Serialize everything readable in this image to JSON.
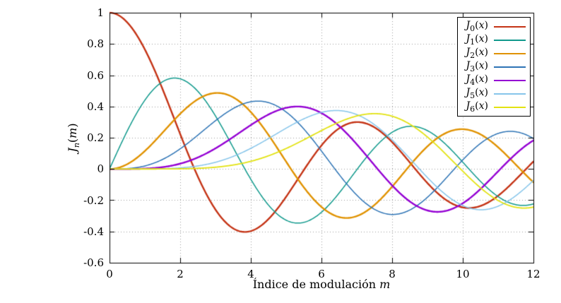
{
  "labels": {
    "y": {
      "base": "J",
      "sub": "n",
      "open": "(",
      "var": "m",
      "close": ")"
    },
    "x": {
      "text": "Índice de modulación ",
      "var": "m"
    }
  },
  "colors": {
    "background": "#ffffff",
    "border": "#000000",
    "text": "#000000",
    "grid": "#999999"
  },
  "chart_data": {
    "type": "line",
    "title": "",
    "xlabel": "Índice de modulación m",
    "ylabel": "J_n(m)",
    "xlim": [
      0,
      12
    ],
    "ylim": [
      -0.6,
      1
    ],
    "grid": "dotted",
    "legend_position": "top-right",
    "x_ticks": {
      "values": [
        0,
        2,
        4,
        6,
        8,
        10,
        12
      ],
      "labels": [
        "0",
        "2",
        "4",
        "6",
        "8",
        "10",
        "12"
      ]
    },
    "y_ticks": {
      "values": [
        1,
        0.8,
        0.6,
        0.4,
        0.2,
        0,
        -0.2,
        -0.4,
        -0.6
      ],
      "labels": [
        "1",
        "0.8",
        "0.6",
        "0.4",
        "0.2",
        "0",
        "-0.2",
        "-0.4",
        "-0.6"
      ]
    },
    "x": [
      0,
      1,
      2,
      3,
      4,
      5,
      6,
      7,
      8,
      9,
      10,
      11,
      12
    ],
    "series": [
      {
        "label": "J0(x)",
        "order": 0,
        "color": "#c43315",
        "lw": 2.4,
        "values": [
          1,
          0.7652,
          0.2239,
          -0.2601,
          -0.3971,
          -0.1776,
          0.1506,
          0.3001,
          0.1717,
          -0.0903,
          -0.2459,
          -0.1712,
          0.0477
        ]
      },
      {
        "label": "J1(x)",
        "order": 1,
        "color": "#10998c",
        "lw": 1.5,
        "values": [
          0,
          0.4401,
          0.5767,
          0.3391,
          -0.066,
          -0.3276,
          -0.2767,
          -0.0047,
          0.2346,
          0.2453,
          0.0435,
          -0.1768,
          -0.2234
        ]
      },
      {
        "label": "J2(x)",
        "order": 2,
        "color": "#e09200",
        "lw": 2.4,
        "values": [
          0,
          0.1149,
          0.3528,
          0.4861,
          0.3641,
          0.0466,
          -0.2429,
          -0.3014,
          -0.113,
          0.1448,
          0.2546,
          0.139,
          -0.0849
        ]
      },
      {
        "label": "J3(x)",
        "order": 3,
        "color": "#2e74b5",
        "lw": 1.5,
        "values": [
          0,
          0.0196,
          0.1289,
          0.3091,
          0.4302,
          0.3648,
          0.1148,
          -0.1676,
          -0.2911,
          -0.1809,
          0.0584,
          0.2273,
          0.1951
        ]
      },
      {
        "label": "J4(x)",
        "order": 4,
        "color": "#9400d3",
        "lw": 2.4,
        "values": [
          0,
          0.0025,
          0.034,
          0.132,
          0.2811,
          0.3912,
          0.3576,
          0.1578,
          -0.1054,
          -0.2655,
          -0.2196,
          -0.015,
          0.1825
        ]
      },
      {
        "label": "J5(x)",
        "order": 5,
        "color": "#86c5ea",
        "lw": 1.5,
        "values": [
          0,
          0.0002,
          0.007,
          0.043,
          0.1321,
          0.2611,
          0.3621,
          0.3479,
          0.1858,
          -0.055,
          -0.2341,
          -0.2383,
          -0.0735
        ]
      },
      {
        "label": "J6(x)",
        "order": 6,
        "color": "#e2e212",
        "lw": 1.8,
        "values": [
          0,
          0.0,
          0.0012,
          0.0114,
          0.0491,
          0.131,
          0.2458,
          0.3392,
          0.3376,
          0.2043,
          -0.0145,
          -0.2016,
          -0.2437
        ]
      }
    ]
  }
}
